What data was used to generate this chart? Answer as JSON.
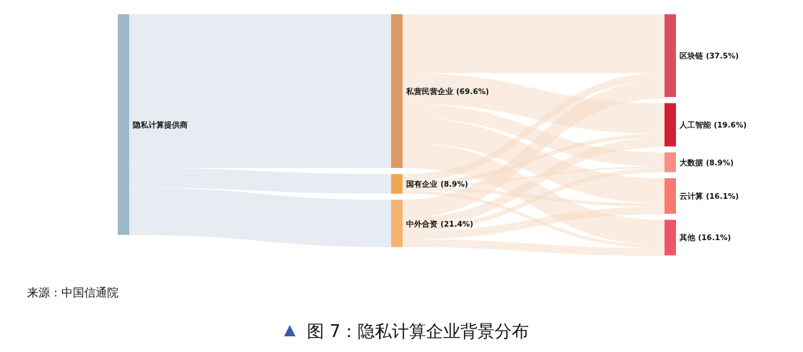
{
  "chart_data": {
    "type": "other",
    "title": "图 7：隐私计算企业背景分布",
    "categories": [
      "隐私计算提供商",
      "私营民营企业",
      "国有企业",
      "中外合资",
      "区块链",
      "人工智能",
      "大数据",
      "云计算",
      "其他"
    ],
    "series": [
      {
        "values": [
          null,
          69.6,
          8.9,
          21.4,
          null,
          null,
          null,
          null,
          null
        ],
        "value_labels": [
          null,
          "(69.6%)",
          "(8.9%)",
          "(21.4%)",
          null,
          null,
          null,
          null,
          null
        ]
      },
      {
        "values": [
          null,
          null,
          null,
          null,
          37.5,
          19.6,
          8.9,
          16.1,
          16.1
        ],
        "value_labels": [
          null,
          null,
          null,
          null,
          "(37.5%)",
          "(19.6%)",
          "(8.9%)",
          "(16.1%)",
          "(16.1%)"
        ]
      }
    ],
    "colors": [
      "#9db8c8",
      "#d99a66",
      "#eea851",
      "#f5b36f",
      "#d9505c",
      "#d21f35",
      "#f98e86",
      "#f87a70",
      "#ee5668"
    ],
    "annotations": [
      "来源：中国信通院"
    ]
  }
}
